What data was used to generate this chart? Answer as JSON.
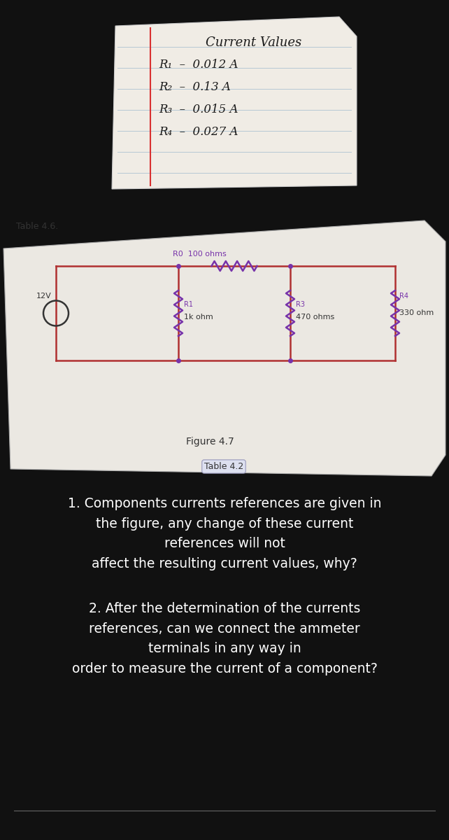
{
  "bg_color": "#111111",
  "note_title": "Current Values",
  "note_lines": [
    [
      "R₁",
      "0.012 A"
    ],
    [
      "R₂",
      "0.13 A"
    ],
    [
      "R₃",
      "0.015 A"
    ],
    [
      "R₄",
      "0.027 A"
    ]
  ],
  "table46_label": "Table 4.6.",
  "figure47_label": "Figure 4.7",
  "table42_label": "Table 4.2",
  "circuit_voltage": "12V",
  "r0_label": "R0",
  "r0_value": "100 ohms",
  "r1_label": "R1",
  "r1_value": "1k ohm",
  "r3_label": "R3",
  "r3_value": "470 ohms",
  "r4_label": "R4",
  "r4_value": "330 ohm",
  "q1": "1. Components currents references are given in\nthe figure, any change of these current\nreferences will not\naffect the resulting current values, why?",
  "q2": "2. After the determination of the currents\nreferences, can we connect the ammeter\nterminals in any way in\norder to measure the current of a component?",
  "wire_color": "#b03030",
  "resistor_color": "#7733aa",
  "text_white": "#ffffff",
  "text_dark": "#222222",
  "line_color_bottom": "#666666",
  "paper1_face": "#f0ece5",
  "paper2_face": "#ebe8e2"
}
